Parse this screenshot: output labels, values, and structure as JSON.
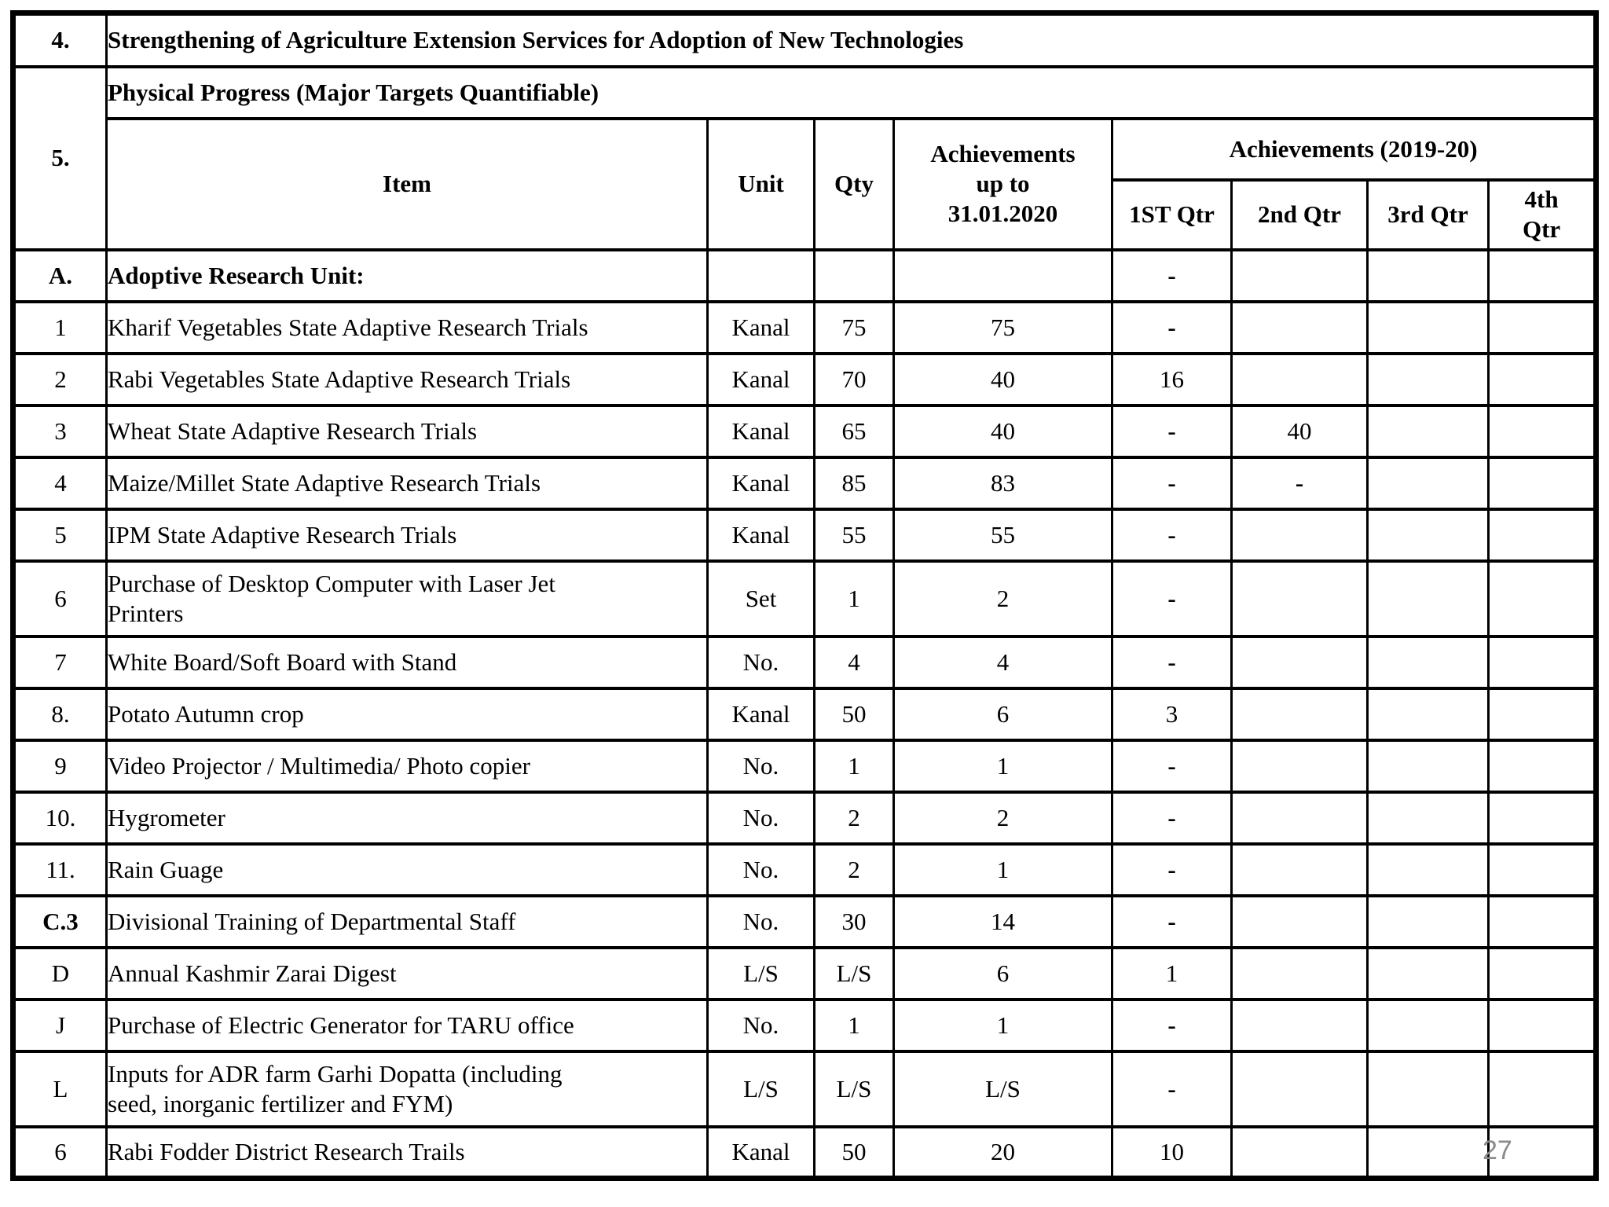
{
  "page": {
    "number": "27"
  },
  "table": {
    "section4": {
      "num": "4.",
      "title": "Strengthening of Agriculture Extension Services for Adoption of New Technologies"
    },
    "section5": {
      "num": "5.",
      "title": "Physical Progress (Major Targets Quantifiable)"
    },
    "headers": {
      "item": "Item",
      "unit": "Unit",
      "qty": "Qty",
      "ach_upto": "Achievements\nup to\n31.01.2020",
      "ach_2019_20": "Achievements (2019-20)",
      "q1": "1ST Qtr",
      "q2": "2nd Qtr",
      "q3": "3rd Qtr",
      "q4": "4th\nQtr"
    },
    "rows": [
      {
        "num": "A.",
        "item": "Adoptive Research Unit:",
        "unit": "",
        "qty": "",
        "ach": "",
        "q1": "-",
        "q2": "",
        "q3": "",
        "q4": "",
        "num_bold": true,
        "item_bold": true
      },
      {
        "num": "1",
        "item": "Kharif Vegetables State Adaptive Research Trials",
        "unit": "Kanal",
        "qty": "75",
        "ach": "75",
        "q1": "-",
        "q2": "",
        "q3": "",
        "q4": ""
      },
      {
        "num": "2",
        "item": "Rabi Vegetables State Adaptive Research Trials",
        "unit": "Kanal",
        "qty": "70",
        "ach": "40",
        "q1": "16",
        "q2": "",
        "q3": "",
        "q4": ""
      },
      {
        "num": "3",
        "item": "Wheat  State Adaptive Research Trials",
        "unit": "Kanal",
        "qty": "65",
        "ach": "40",
        "q1": "-",
        "q2": "40",
        "q3": "",
        "q4": ""
      },
      {
        "num": "4",
        "item": "Maize/Millet State Adaptive Research Trials",
        "unit": "Kanal",
        "qty": "85",
        "ach": "83",
        "q1": "-",
        "q2": "-",
        "q3": "",
        "q4": ""
      },
      {
        "num": "5",
        "item": "IPM State Adaptive Research Trials",
        "unit": "Kanal",
        "qty": "55",
        "ach": "55",
        "q1": "-",
        "q2": "",
        "q3": "",
        "q4": ""
      },
      {
        "num": "6",
        "item": "Purchase of Desktop Computer with Laser Jet\nPrinters",
        "unit": "Set",
        "qty": "1",
        "ach": "2",
        "q1": "-",
        "q2": "",
        "q3": "",
        "q4": ""
      },
      {
        "num": "7",
        "item": "White Board/Soft Board with Stand",
        "unit": "No.",
        "qty": "4",
        "ach": "4",
        "q1": "-",
        "q2": "",
        "q3": "",
        "q4": ""
      },
      {
        "num": "8.",
        "item": "Potato Autumn crop",
        "unit": "Kanal",
        "qty": "50",
        "ach": "6",
        "q1": "3",
        "q2": "",
        "q3": "",
        "q4": ""
      },
      {
        "num": "9",
        "item": "Video Projector / Multimedia/ Photo copier",
        "unit": "No.",
        "qty": "1",
        "ach": "1",
        "q1": "-",
        "q2": "",
        "q3": "",
        "q4": ""
      },
      {
        "num": "10.",
        "item": "Hygrometer",
        "unit": "No.",
        "qty": "2",
        "ach": "2",
        "q1": "-",
        "q2": "",
        "q3": "",
        "q4": ""
      },
      {
        "num": "11.",
        "item": "Rain Guage",
        "unit": "No.",
        "qty": "2",
        "ach": "1",
        "q1": "-",
        "q2": "",
        "q3": "",
        "q4": ""
      },
      {
        "num": "C.3",
        "item": "Divisional Training  of Departmental Staff",
        "unit": "No.",
        "qty": "30",
        "ach": "14",
        "q1": "-",
        "q2": "",
        "q3": "",
        "q4": "",
        "num_bold": true
      },
      {
        "num": "D",
        "item": "Annual Kashmir Zarai Digest",
        "unit": "L/S",
        "qty": "L/S",
        "ach": "6",
        "q1": "1",
        "q2": "",
        "q3": "",
        "q4": ""
      },
      {
        "num": "J",
        "item": "Purchase of Electric Generator for TARU office",
        "unit": "No.",
        "qty": "1",
        "ach": "1",
        "q1": "-",
        "q2": "",
        "q3": "",
        "q4": ""
      },
      {
        "num": "L",
        "item": "Inputs for ADR farm Garhi Dopatta (including\nseed, inorganic fertilizer and FYM)",
        "unit": "L/S",
        "qty": "L/S",
        "ach": "L/S",
        "q1": "-",
        "q2": "",
        "q3": "",
        "q4": ""
      },
      {
        "num": "6",
        "item": "Rabi Fodder District Research Trails",
        "unit": "Kanal",
        "qty": "50",
        "ach": "20",
        "q1": "10",
        "q2": "",
        "q3": "",
        "q4": ""
      }
    ]
  }
}
